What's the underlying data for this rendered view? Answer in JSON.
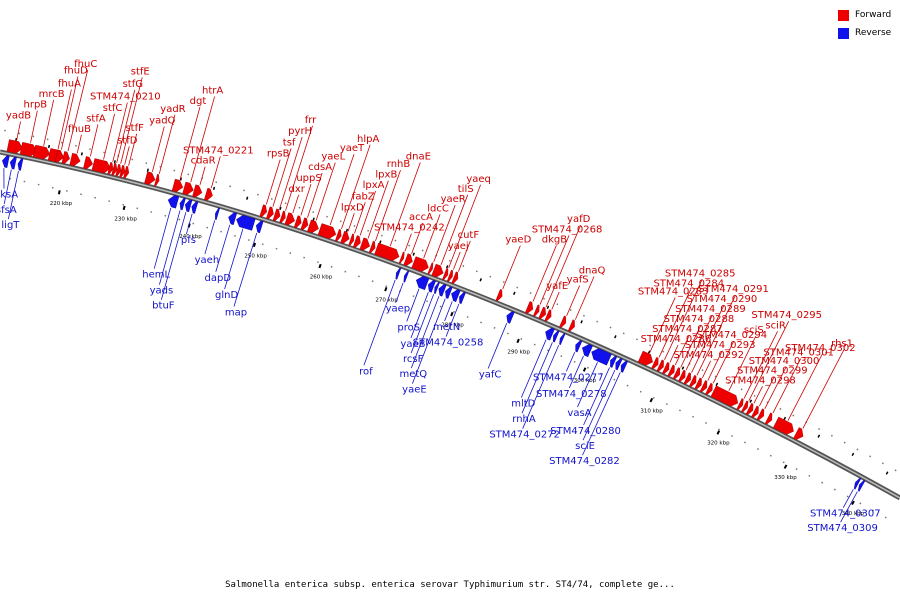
{
  "colors": {
    "forward": "#ee0000",
    "reverse": "#1111ee",
    "backbone": "#888888"
  },
  "legend": [
    {
      "label": "Forward",
      "color": "#ee0000"
    },
    {
      "label": "Reverse",
      "color": "#1111ee"
    }
  ],
  "caption": "Salmonella enterica subsp. enterica serovar Typhimurium str. ST4/74, complete ge...",
  "scale": {
    "start_kbp": 210,
    "end_kbp": 345,
    "tick_labels": [
      "220 kbp",
      "230 kbp",
      "240 kbp",
      "250 kbp",
      "260 kbp",
      "270 kbp",
      "280 kbp",
      "290 kbp",
      "300 kbp",
      "310 kbp",
      "320 kbp",
      "330 kbp",
      "340 kbp"
    ]
  },
  "forward_genes": [
    {
      "name": "yadB",
      "kbp": 211.0,
      "len": 2.2
    },
    {
      "name": "hrpB",
      "kbp": 213.0,
      "len": 2.4
    },
    {
      "name": "mrcB",
      "kbp": 215.0,
      "len": 2.4
    },
    {
      "name": "fhuA",
      "kbp": 217.3,
      "len": 2.2
    },
    {
      "name": "fhuD",
      "kbp": 218.4,
      "len": 1.0
    },
    {
      "name": "fhuC",
      "kbp": 219.4,
      "len": 1.0
    },
    {
      "name": "fhuB",
      "kbp": 220.6,
      "len": 1.4
    },
    {
      "name": "stfA",
      "kbp": 222.7,
      "len": 1.2
    },
    {
      "name": "stfC",
      "kbp": 224.0,
      "len": 2.6
    },
    {
      "name": "STM474_0210",
      "kbp": 226.4,
      "len": 0.6
    },
    {
      "name": "stfG",
      "kbp": 227.0,
      "len": 0.6
    },
    {
      "name": "stfE",
      "kbp": 227.6,
      "len": 0.6
    },
    {
      "name": "stfD",
      "kbp": 228.2,
      "len": 0.6
    },
    {
      "name": "stfF",
      "kbp": 228.8,
      "len": 0.6
    },
    {
      "name": "yadQ",
      "kbp": 232.0,
      "len": 1.4
    },
    {
      "name": "yadR",
      "kbp": 233.5,
      "len": 0.5
    },
    {
      "name": "dgt",
      "kbp": 236.2,
      "len": 1.4
    },
    {
      "name": "htrA",
      "kbp": 237.8,
      "len": 1.4
    },
    {
      "name": "cdaR",
      "kbp": 239.3,
      "len": 1.2
    },
    {
      "name": "STM474_0221",
      "kbp": 241.1,
      "len": 1.0
    },
    {
      "name": "rpsB",
      "kbp": 249.5,
      "len": 0.8
    },
    {
      "name": "tsf",
      "kbp": 250.5,
      "len": 0.8
    },
    {
      "name": "pyrH",
      "kbp": 251.5,
      "len": 0.8
    },
    {
      "name": "frr",
      "kbp": 252.5,
      "len": 0.6
    },
    {
      "name": "dxr",
      "kbp": 253.3,
      "len": 1.2
    },
    {
      "name": "uppS",
      "kbp": 254.7,
      "len": 0.8
    },
    {
      "name": "cdsA",
      "kbp": 255.7,
      "len": 0.8
    },
    {
      "name": "yaeL",
      "kbp": 256.7,
      "len": 1.4
    },
    {
      "name": "yaeT",
      "kbp": 258.3,
      "len": 2.4
    },
    {
      "name": "hlpA",
      "kbp": 260.9,
      "len": 0.6
    },
    {
      "name": "lpxD",
      "kbp": 261.7,
      "len": 1.0
    },
    {
      "name": "fabZ",
      "kbp": 262.9,
      "len": 0.5
    },
    {
      "name": "lpxA",
      "kbp": 263.6,
      "len": 0.8
    },
    {
      "name": "lpxB",
      "kbp": 264.6,
      "len": 1.2
    },
    {
      "name": "rnhB",
      "kbp": 266.0,
      "len": 0.6
    },
    {
      "name": "dnaE",
      "kbp": 266.8,
      "len": 3.4
    },
    {
      "name": "STM474_0242",
      "kbp": 270.5,
      "len": 0.4
    },
    {
      "name": "accA",
      "kbp": 271.2,
      "len": 1.0
    },
    {
      "name": "ldcC",
      "kbp": 272.4,
      "len": 2.2
    },
    {
      "name": "yaeR",
      "kbp": 274.8,
      "len": 0.4
    },
    {
      "name": "tilS",
      "kbp": 275.4,
      "len": 1.4
    },
    {
      "name": "yaeq",
      "kbp": 277.0,
      "len": 0.5
    },
    {
      "name": "yaej",
      "kbp": 277.7,
      "len": 0.5
    },
    {
      "name": "cutF",
      "kbp": 278.4,
      "len": 0.6
    },
    {
      "name": "yaeD",
      "kbp": 285.0,
      "len": 0.6
    },
    {
      "name": "dkgB",
      "kbp": 289.4,
      "len": 0.8
    },
    {
      "name": "STM474_0268",
      "kbp": 290.6,
      "len": 0.5
    },
    {
      "name": "yafD",
      "kbp": 291.4,
      "len": 0.7
    },
    {
      "name": "yafE",
      "kbp": 292.3,
      "len": 0.6
    },
    {
      "name": "yafS",
      "kbp": 294.5,
      "len": 0.6
    },
    {
      "name": "dnaQ",
      "kbp": 295.8,
      "len": 0.6
    },
    {
      "name": "STM474_0283",
      "kbp": 306.2,
      "len": 1.8
    },
    {
      "name": "STM474_0284",
      "kbp": 308.2,
      "len": 0.6
    },
    {
      "name": "STM474_0285",
      "kbp": 309.0,
      "len": 0.6
    },
    {
      "name": "STM474_0286",
      "kbp": 309.8,
      "len": 0.6
    },
    {
      "name": "STM474_0287",
      "kbp": 310.6,
      "len": 0.6
    },
    {
      "name": "STM474_0288",
      "kbp": 311.4,
      "len": 0.6
    },
    {
      "name": "STM474_0289",
      "kbp": 312.2,
      "len": 0.6
    },
    {
      "name": "STM474_0290",
      "kbp": 313.0,
      "len": 0.6
    },
    {
      "name": "STM474_0291",
      "kbp": 313.8,
      "len": 0.6
    },
    {
      "name": "STM474_0292",
      "kbp": 314.6,
      "len": 0.6
    },
    {
      "name": "STM474_0293",
      "kbp": 315.4,
      "len": 0.6
    },
    {
      "name": "STM474_0294",
      "kbp": 316.2,
      "len": 0.6
    },
    {
      "name": "sciS",
      "kbp": 317.0,
      "len": 3.6
    },
    {
      "name": "sciR",
      "kbp": 320.8,
      "len": 0.5
    },
    {
      "name": "STM474_0295",
      "kbp": 321.5,
      "len": 0.5
    },
    {
      "name": "STM474_0298",
      "kbp": 322.2,
      "len": 0.6
    },
    {
      "name": "STM474_0299",
      "kbp": 323.0,
      "len": 0.6
    },
    {
      "name": "STM474_0300",
      "kbp": 323.8,
      "len": 0.6
    },
    {
      "name": "STM474_0301",
      "kbp": 325.0,
      "len": 0.6
    },
    {
      "name": "STM474_0302",
      "kbp": 326.2,
      "len": 2.6
    },
    {
      "name": "rhs1",
      "kbp": 329.2,
      "len": 1.0
    }
  ],
  "reverse_genes": [
    {
      "name": "dksA",
      "kbp": 210.6,
      "len": 0.9
    },
    {
      "name": "sfsA",
      "kbp": 211.8,
      "len": 0.8
    },
    {
      "name": "ligT",
      "kbp": 213.0,
      "len": 0.6
    },
    {
      "name": "hemL",
      "kbp": 236.0,
      "len": 1.4
    },
    {
      "name": "yads",
      "kbp": 237.8,
      "len": 0.6
    },
    {
      "name": "btuF",
      "kbp": 238.6,
      "len": 0.8
    },
    {
      "name": "pfs",
      "kbp": 239.6,
      "len": 0.7
    },
    {
      "name": "yaeh",
      "kbp": 243.2,
      "len": 0.4
    },
    {
      "name": "dapD",
      "kbp": 245.2,
      "len": 1.0
    },
    {
      "name": "glnD",
      "kbp": 246.4,
      "len": 2.6
    },
    {
      "name": "map",
      "kbp": 249.4,
      "len": 0.8
    },
    {
      "name": "rof",
      "kbp": 270.6,
      "len": 0.4
    },
    {
      "name": "yaep",
      "kbp": 271.8,
      "len": 0.4
    },
    {
      "name": "proS",
      "kbp": 273.6,
      "len": 1.6
    },
    {
      "name": "yaeB",
      "kbp": 275.4,
      "len": 0.8
    },
    {
      "name": "rcsF",
      "kbp": 276.4,
      "len": 0.4
    },
    {
      "name": "metQ",
      "kbp": 277.0,
      "len": 0.8
    },
    {
      "name": "yaeE",
      "kbp": 278.0,
      "len": 0.7
    },
    {
      "name": "metN",
      "kbp": 278.9,
      "len": 1.0
    },
    {
      "name": "STM474_0258",
      "kbp": 280.1,
      "len": 0.6
    },
    {
      "name": "yafC",
      "kbp": 287.2,
      "len": 0.8
    },
    {
      "name": "mltD",
      "kbp": 293.0,
      "len": 1.0
    },
    {
      "name": "rnhA",
      "kbp": 294.2,
      "len": 0.5
    },
    {
      "name": "STM474_0272",
      "kbp": 295.2,
      "len": 0.4
    },
    {
      "name": "STM474_0277",
      "kbp": 297.5,
      "len": 0.6
    },
    {
      "name": "STM474_0278",
      "kbp": 298.5,
      "len": 1.2
    },
    {
      "name": "vasA",
      "kbp": 299.9,
      "len": 2.6
    },
    {
      "name": "STM474_0280",
      "kbp": 302.7,
      "len": 0.6
    },
    {
      "name": "sciE",
      "kbp": 303.5,
      "len": 0.6
    },
    {
      "name": "STM474_0282",
      "kbp": 304.3,
      "len": 0.6
    },
    {
      "name": "STM474_0307",
      "kbp": 339.0,
      "len": 0.4
    },
    {
      "name": "STM474_0309",
      "kbp": 339.6,
      "len": 0.4
    }
  ]
}
